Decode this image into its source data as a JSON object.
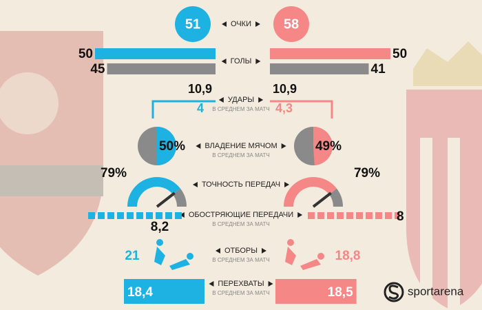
{
  "brand": "sportarena",
  "colors": {
    "left": "#1eb2e2",
    "right": "#f58787",
    "neutral": "#8a8a8a"
  },
  "points": {
    "label": "ОЧКИ",
    "left": 51,
    "right": 58
  },
  "goals": {
    "label": "ГОЛЫ",
    "left": {
      "scored": 50,
      "conceded": 45
    },
    "right": {
      "scored": 50,
      "conceded": 41
    }
  },
  "shots": {
    "label": "УДАРЫ",
    "note": "В СРЕДНЕМ ЗА МАТЧ",
    "left": {
      "total": {
        "value": 10.9,
        "label": "10,9"
      },
      "on_target": 4
    },
    "right": {
      "total": {
        "value": 10.9,
        "label": "10,9"
      },
      "on_target": {
        "value": 4.3,
        "label": "4,3"
      }
    }
  },
  "possession": {
    "label": "ВЛАДЕНИЕ МЯЧОМ",
    "note": "В СРЕДНЕМ ЗА МАТЧ",
    "left": {
      "value": 50,
      "label": "50%"
    },
    "right": {
      "value": 49,
      "label": "49%"
    }
  },
  "pass_accuracy": {
    "label": "ТОЧНОСТЬ ПЕРЕДАЧ",
    "left": {
      "value": 79,
      "label": "79%"
    },
    "right": {
      "value": 79,
      "label": "79%"
    }
  },
  "crosses": {
    "label": "ОБОСТРЯЮЩИЕ ПЕРЕДАЧИ",
    "note": "В СРЕДНЕМ ЗА МАТЧ",
    "left": {
      "value": 8.2,
      "label": "8,2"
    },
    "right": 8
  },
  "tackles": {
    "label": "ОТБОРЫ",
    "note": "В СРЕДНЕМ ЗА МАТЧ",
    "left": 21,
    "right": {
      "value": 18.8,
      "label": "18,8"
    }
  },
  "interceptions": {
    "label": "ПЕРЕХВАТЫ",
    "note": "В СРЕДНЕМ ЗА МАТЧ",
    "left": {
      "value": 18.4,
      "label": "18,4"
    },
    "right": {
      "value": 18.5,
      "label": "18,5"
    }
  }
}
